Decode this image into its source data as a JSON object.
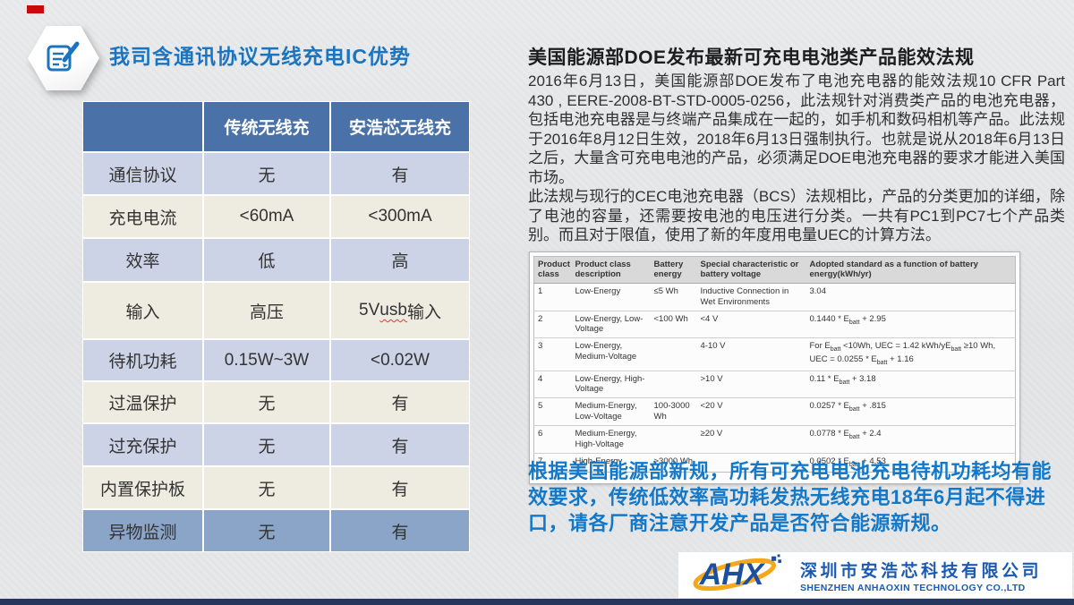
{
  "colors": {
    "accent_blue": "#1a74bf",
    "table_header_blue": "#4b72a8",
    "row_alt_blue": "#ccd3e6",
    "row_alt_cream": "#eeece0",
    "row_highlight_steel": "#8aa5c8",
    "notice_blue": "#1478c8",
    "logo_blue": "#1c4f9e",
    "logo_orange": "#f6a81c",
    "footer_bar_navy": "#26375e",
    "red_mark": "#c9090b"
  },
  "header": {
    "title": "我司含通讯协议无线充电IC优势",
    "icon": "note-pencil-icon"
  },
  "comparison_table": {
    "column_headers": [
      "",
      "传统无线充",
      "安浩芯无线充"
    ],
    "rows": [
      {
        "label": "通信协议",
        "values": [
          "无",
          "有"
        ]
      },
      {
        "label": "充电电流",
        "values": [
          "<60mA",
          "<300mA"
        ]
      },
      {
        "label": "效率",
        "values": [
          "低",
          "高"
        ]
      },
      {
        "label": "输入",
        "values": [
          "高压",
          "5V usb输入"
        ],
        "wavy_substring": "usb"
      },
      {
        "label": "待机功耗",
        "values": [
          "0.15W~3W",
          "<0.02W"
        ]
      },
      {
        "label": "过温保护",
        "values": [
          "无",
          "有"
        ]
      },
      {
        "label": "过充保护",
        "values": [
          "无",
          "有"
        ]
      },
      {
        "label": "内置保护板",
        "values": [
          "无",
          "有"
        ]
      },
      {
        "label": "异物监测",
        "values": [
          "无",
          "有"
        ]
      }
    ]
  },
  "article": {
    "heading": "美国能源部DOE发布最新可充电电池类产品能效法规",
    "paragraphs": [
      "2016年6月13日，美国能源部DOE发布了电池充电器的能效法规10 CFR Part 430 , EERE-2008-BT-STD-0005-0256，此法规针对消费类产品的电池充电器，包括电池充电器是与终端产品集成在一起的，如手机和数码相机等产品。此法规于2016年8月12日生效，2018年6月13日强制执行。也就是说从2018年6月13日之后，大量含可充电电池的产品，必须满足DOE电池充电器的要求才能进入美国市场。",
      "此法规与现行的CEC电池充电器（BCS）法规相比，产品的分类更加的详细，除了电池的容量，还需要按电池的电压进行分类。一共有PC1到PC7七个产品类别。而且对于限值，使用了新的年度用电量UEC的计算方法。"
    ]
  },
  "std_table": {
    "headers": [
      "Product class",
      "Product class description",
      "Battery energy",
      "Special characteristic or battery voltage",
      "Adopted standard as a function of battery energy(kWh/yr)"
    ],
    "rows": [
      [
        "1",
        "Low-Energy",
        "≤5 Wh",
        "Inductive Connection in Wet Environments",
        "3.04"
      ],
      [
        "2",
        "Low-Energy, Low-Voltage",
        "<100 Wh",
        "<4 V",
        "0.1440 * E batt + 2.95"
      ],
      [
        "3",
        "Low-Energy, Medium-Voltage",
        "",
        "4-10 V",
        "For E batt <10Wh, UEC = 1.42 kWh/yE batt ≥10 Wh, UEC = 0.0255 * E batt + 1.16"
      ],
      [
        "4",
        "Low-Energy, High-Voltage",
        "",
        ">10 V",
        "0.11 * E batt + 3.18"
      ],
      [
        "5",
        "Medium-Energy, Low-Voltage",
        "100-3000 Wh",
        "<20 V",
        "0.0257 * E batt + .815"
      ],
      [
        "6",
        "Medium-Energy, High-Voltage",
        "",
        "≥20 V",
        "0.0778 * E batt + 2.4"
      ],
      [
        "7",
        "High-Energy",
        ">3000 Wh",
        "",
        "0.0502 * E batt + 4.53"
      ]
    ]
  },
  "notice": {
    "text": "根据美国能源部新规，所有可充电电池充电待机功耗均有能效要求，传统低效率高功耗发热无线充电18年6月起不得进口，请各厂商注意开发产品是否符合能源新规。"
  },
  "logo": {
    "abbr": "AHX",
    "cn_name": "深圳市安浩芯科技有限公司",
    "en_name": "SHENZHEN ANHAOXIN TECHNOLOGY CO.,LTD"
  }
}
